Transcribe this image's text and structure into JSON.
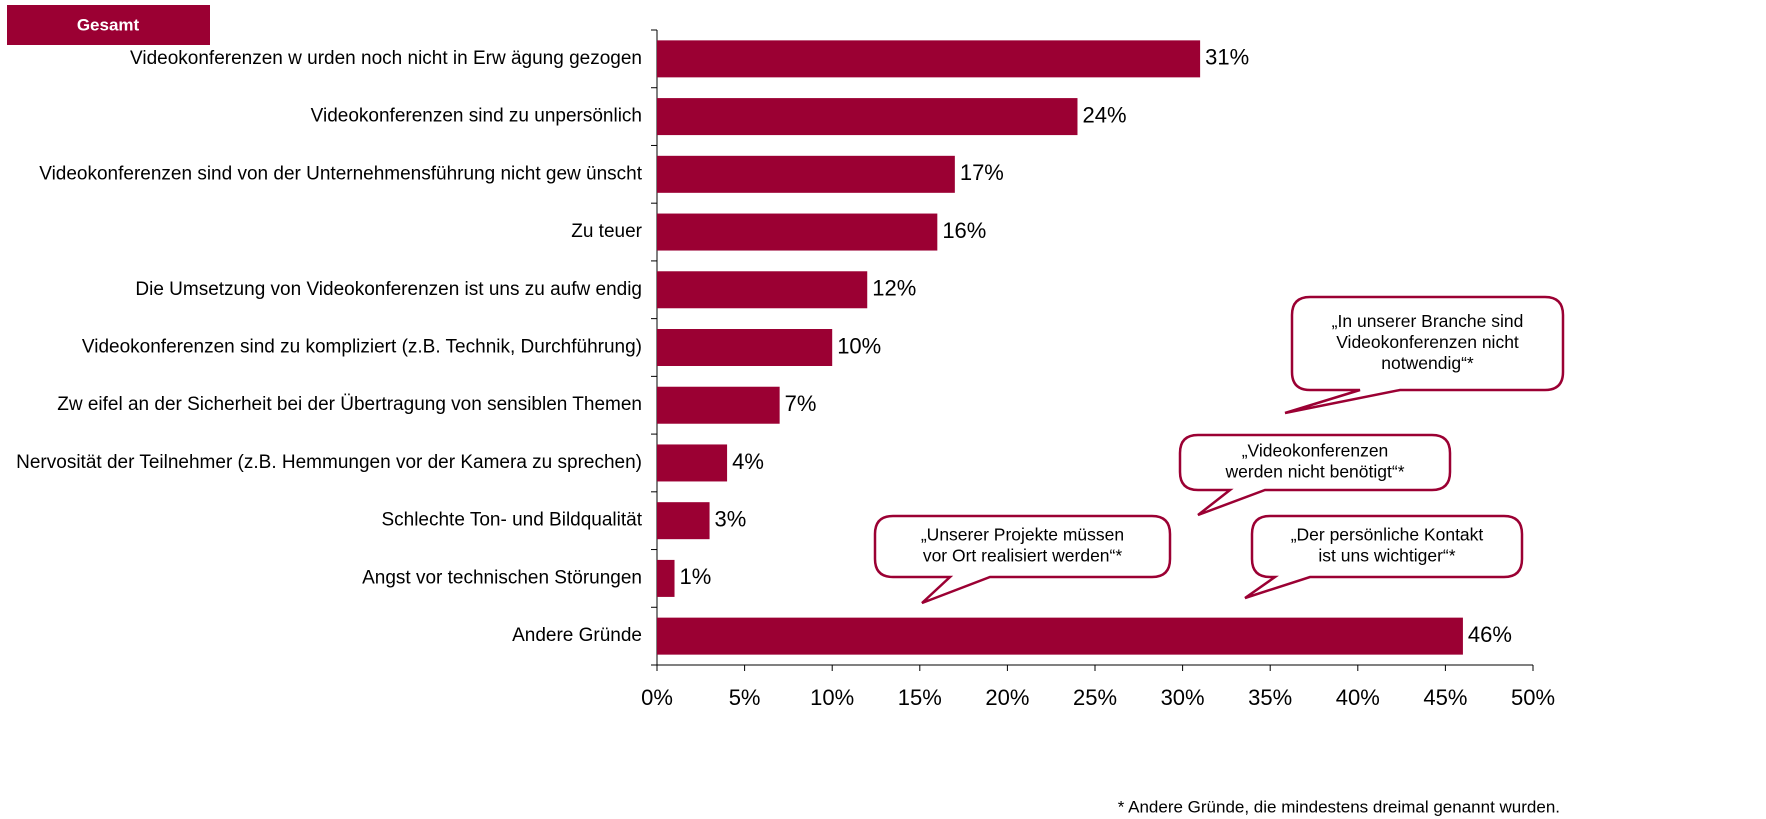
{
  "chart_data": {
    "type": "barh",
    "header": "Gesamt",
    "categories": [
      "Videokonferenzen w urden noch nicht in Erw ägung gezogen",
      "Videokonferenzen sind zu unpersönlich",
      "Videokonferenzen sind von der Unternehmensführung nicht gew ünscht",
      "Zu teuer",
      "Die Umsetzung von Videokonferenzen ist uns zu aufw endig",
      "Videokonferenzen sind zu kompliziert (z.B. Technik, Durchführung)",
      "Zw eifel an der Sicherheit bei der Übertragung von sensiblen Themen",
      "Nervosität der Teilnehmer (z.B. Hemmungen vor der Kamera zu sprechen)",
      "Schlechte Ton- und Bildqualität",
      "Angst vor technischen Störungen",
      "Andere Gründe"
    ],
    "values": [
      31,
      24,
      17,
      16,
      12,
      10,
      7,
      4,
      3,
      1,
      46
    ],
    "value_labels": [
      "31%",
      "24%",
      "17%",
      "16%",
      "12%",
      "10%",
      "7%",
      "4%",
      "3%",
      "1%",
      "46%"
    ],
    "color": "#9b0033",
    "xlim": [
      0,
      50
    ],
    "xticks": [
      {
        "value": 0,
        "label": "0%"
      },
      {
        "value": 5,
        "label": "5%"
      },
      {
        "value": 10,
        "label": "10%"
      },
      {
        "value": 15,
        "label": "15%"
      },
      {
        "value": 20,
        "label": "20%"
      },
      {
        "value": 25,
        "label": "25%"
      },
      {
        "value": 30,
        "label": "30%"
      },
      {
        "value": 35,
        "label": "35%"
      },
      {
        "value": 40,
        "label": "40%"
      },
      {
        "value": 45,
        "label": "45%"
      },
      {
        "value": 50,
        "label": "50%"
      }
    ],
    "grid": false,
    "annotations": [
      {
        "lines": [
          "„In unserer Branche sind",
          "Videokonferenzen nicht",
          "notwendig“*"
        ]
      },
      {
        "lines": [
          "„Videokonferenzen",
          "werden nicht benötigt“*"
        ]
      },
      {
        "lines": [
          "„Unserer Projekte müssen",
          "vor Ort realisiert werden“*"
        ]
      },
      {
        "lines": [
          "„Der persönliche Kontakt",
          "ist uns wichtiger“*"
        ]
      }
    ],
    "footnote": "* Andere Gründe, die mindestens dreimal genannt wurden."
  }
}
